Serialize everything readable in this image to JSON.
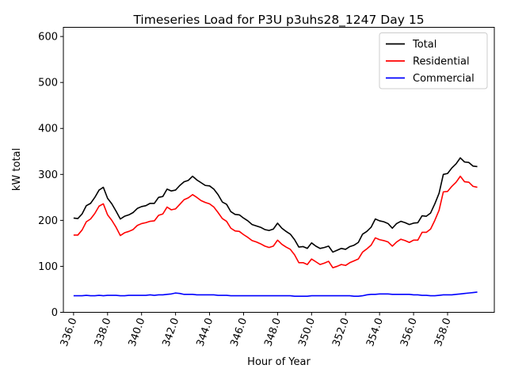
{
  "chart_data": {
    "type": "line",
    "title": "Timeseries Load for P3U p3uhs28_1247  Day 15",
    "xlabel": "Hour of Year",
    "ylabel": "kW total",
    "xlim": [
      335.4,
      360.75
    ],
    "ylim": [
      0,
      620
    ],
    "xticks": [
      336.0,
      338.0,
      340.0,
      342.0,
      344.0,
      346.0,
      348.0,
      350.0,
      352.0,
      354.0,
      356.0,
      358.0
    ],
    "xtick_labels": [
      "336.0",
      "338.0",
      "340.0",
      "342.0",
      "344.0",
      "346.0",
      "348.0",
      "350.0",
      "352.0",
      "354.0",
      "356.0",
      "358.0"
    ],
    "yticks": [
      0,
      100,
      200,
      300,
      400,
      500,
      600
    ],
    "ytick_labels": [
      "0",
      "100",
      "200",
      "300",
      "400",
      "500",
      "600"
    ],
    "grid": false,
    "legend_position": "top-right",
    "x": [
      336.0,
      336.25,
      336.5,
      336.75,
      337.0,
      337.25,
      337.5,
      337.75,
      338.0,
      338.25,
      338.5,
      338.75,
      339.0,
      339.25,
      339.5,
      339.75,
      340.0,
      340.25,
      340.5,
      340.75,
      341.0,
      341.25,
      341.5,
      341.75,
      342.0,
      342.25,
      342.5,
      342.75,
      343.0,
      343.25,
      343.5,
      343.75,
      344.0,
      344.25,
      344.5,
      344.75,
      345.0,
      345.25,
      345.5,
      345.75,
      346.0,
      346.25,
      346.5,
      346.75,
      347.0,
      347.25,
      347.5,
      347.75,
      348.0,
      348.25,
      348.5,
      348.75,
      349.0,
      349.25,
      349.5,
      349.75,
      350.0,
      350.25,
      350.5,
      350.75,
      351.0,
      351.25,
      351.5,
      351.75,
      352.0,
      352.25,
      352.5,
      352.75,
      353.0,
      353.25,
      353.5,
      353.75,
      354.0,
      354.25,
      354.5,
      354.75,
      355.0,
      355.25,
      355.5,
      355.75,
      356.0,
      356.25,
      356.5,
      356.75,
      357.0,
      357.25,
      357.5,
      357.75,
      358.0,
      358.25,
      358.5,
      358.75,
      359.0,
      359.25,
      359.5,
      359.75
    ],
    "series": [
      {
        "name": "Total",
        "color": "#000000",
        "values": [
          205,
          204,
          214,
          232,
          237,
          250,
          266,
          272,
          248,
          236,
          220,
          203,
          209,
          212,
          217,
          226,
          230,
          232,
          237,
          237,
          250,
          252,
          268,
          264,
          266,
          276,
          284,
          287,
          296,
          288,
          282,
          276,
          275,
          268,
          256,
          240,
          235,
          219,
          213,
          212,
          205,
          199,
          191,
          188,
          185,
          180,
          178,
          181,
          194,
          183,
          176,
          170,
          158,
          142,
          143,
          139,
          151,
          144,
          139,
          141,
          144,
          131,
          135,
          139,
          137,
          143,
          146,
          152,
          170,
          176,
          185,
          203,
          199,
          197,
          193,
          183,
          193,
          198,
          195,
          191,
          194,
          195,
          210,
          209,
          216,
          236,
          259,
          300,
          302,
          314,
          323,
          336,
          327,
          326,
          318,
          317
        ],
        "color_name": "black"
      },
      {
        "name": "Residential",
        "color": "#ff0000",
        "values": [
          168,
          168,
          179,
          197,
          203,
          215,
          231,
          236,
          212,
          200,
          185,
          167,
          173,
          176,
          180,
          189,
          193,
          195,
          198,
          199,
          211,
          214,
          229,
          223,
          225,
          235,
          245,
          249,
          256,
          250,
          243,
          239,
          236,
          229,
          217,
          204,
          198,
          183,
          177,
          176,
          169,
          163,
          156,
          153,
          149,
          144,
          141,
          144,
          157,
          148,
          142,
          137,
          125,
          108,
          108,
          104,
          116,
          110,
          104,
          107,
          111,
          97,
          100,
          104,
          102,
          108,
          112,
          116,
          131,
          138,
          146,
          162,
          158,
          156,
          153,
          144,
          153,
          159,
          156,
          152,
          157,
          157,
          174,
          174,
          181,
          200,
          222,
          262,
          263,
          274,
          283,
          296,
          284,
          283,
          274,
          272
        ],
        "color_name": "red"
      },
      {
        "name": "Commercial",
        "color": "#0000ff",
        "values": [
          36,
          36,
          36,
          37,
          36,
          36,
          37,
          36,
          37,
          37,
          37,
          36,
          36,
          37,
          37,
          37,
          37,
          37,
          38,
          37,
          38,
          38,
          39,
          40,
          42,
          41,
          39,
          39,
          39,
          38,
          38,
          38,
          38,
          38,
          37,
          37,
          37,
          36,
          36,
          36,
          36,
          36,
          36,
          36,
          36,
          36,
          36,
          36,
          36,
          36,
          36,
          36,
          35,
          35,
          35,
          35,
          36,
          36,
          36,
          36,
          36,
          36,
          36,
          36,
          36,
          36,
          35,
          35,
          36,
          38,
          39,
          39,
          40,
          40,
          40,
          39,
          39,
          39,
          39,
          39,
          38,
          38,
          37,
          37,
          36,
          36,
          37,
          38,
          38,
          38,
          39,
          40,
          41,
          42,
          43,
          44
        ],
        "color_name": "blue"
      }
    ]
  }
}
